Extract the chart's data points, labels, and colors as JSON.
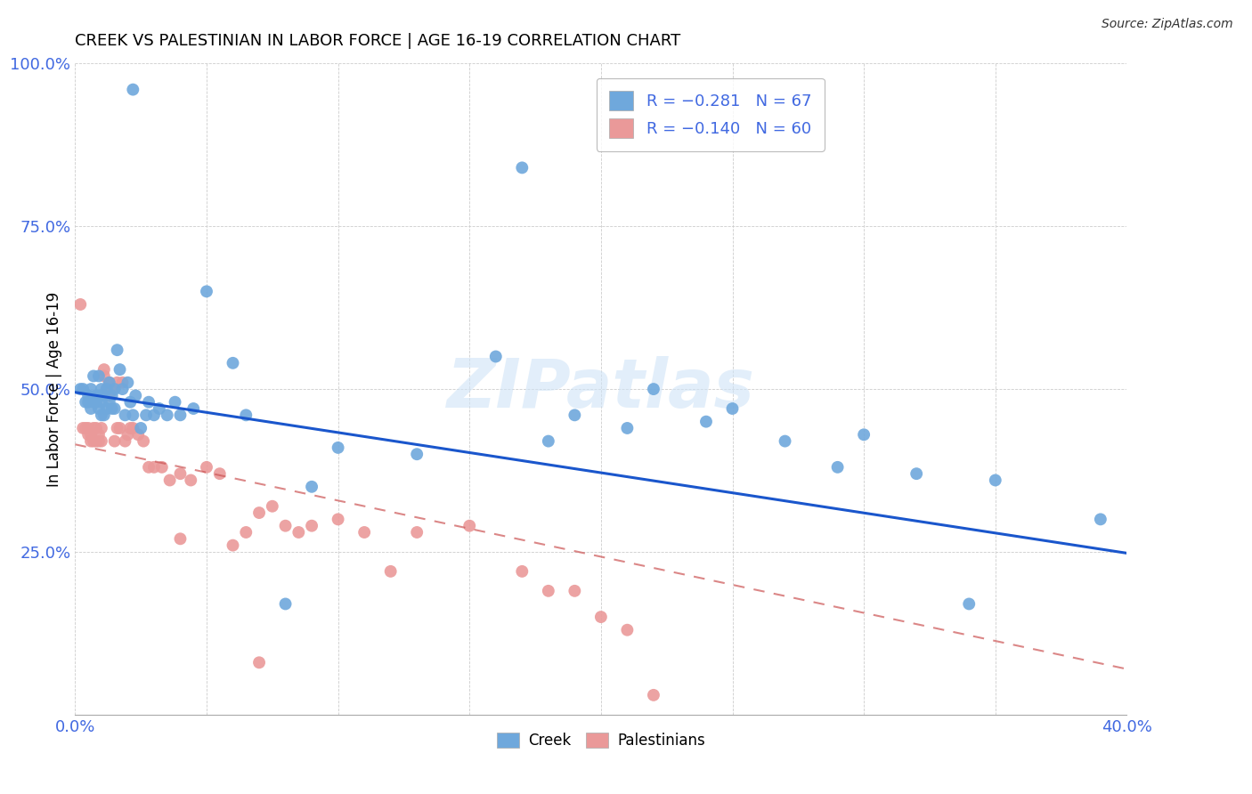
{
  "title": "CREEK VS PALESTINIAN IN LABOR FORCE | AGE 16-19 CORRELATION CHART",
  "source": "Source: ZipAtlas.com",
  "ylabel_label": "In Labor Force | Age 16-19",
  "x_min": 0.0,
  "x_max": 0.4,
  "y_min": 0.0,
  "y_max": 1.0,
  "x_ticks": [
    0.0,
    0.05,
    0.1,
    0.15,
    0.2,
    0.25,
    0.3,
    0.35,
    0.4
  ],
  "y_ticks": [
    0.0,
    0.25,
    0.5,
    0.75,
    1.0
  ],
  "creek_color": "#6fa8dc",
  "palestinian_color": "#ea9999",
  "creek_line_color": "#1a56cc",
  "palestinian_line_color": "#cc5555",
  "background_color": "#ffffff",
  "watermark": "ZIPatlas",
  "legend_creek_r": "R = −0.281",
  "legend_creek_n": "N = 67",
  "legend_pal_r": "R = −0.140",
  "legend_pal_n": "N = 60",
  "creek_x": [
    0.022,
    0.002,
    0.003,
    0.004,
    0.005,
    0.005,
    0.006,
    0.006,
    0.007,
    0.007,
    0.008,
    0.008,
    0.009,
    0.009,
    0.009,
    0.01,
    0.01,
    0.01,
    0.011,
    0.011,
    0.012,
    0.012,
    0.013,
    0.013,
    0.014,
    0.014,
    0.015,
    0.015,
    0.016,
    0.017,
    0.018,
    0.019,
    0.02,
    0.021,
    0.022,
    0.023,
    0.025,
    0.027,
    0.028,
    0.03,
    0.032,
    0.035,
    0.038,
    0.04,
    0.045,
    0.05,
    0.06,
    0.065,
    0.09,
    0.1,
    0.13,
    0.16,
    0.19,
    0.22,
    0.24,
    0.27,
    0.3,
    0.32,
    0.35,
    0.39,
    0.25,
    0.18,
    0.21,
    0.29,
    0.34,
    0.17,
    0.08
  ],
  "creek_y": [
    0.96,
    0.5,
    0.5,
    0.48,
    0.49,
    0.48,
    0.5,
    0.47,
    0.52,
    0.48,
    0.49,
    0.48,
    0.52,
    0.49,
    0.47,
    0.48,
    0.5,
    0.46,
    0.49,
    0.46,
    0.5,
    0.47,
    0.48,
    0.51,
    0.49,
    0.47,
    0.5,
    0.47,
    0.56,
    0.53,
    0.5,
    0.46,
    0.51,
    0.48,
    0.46,
    0.49,
    0.44,
    0.46,
    0.48,
    0.46,
    0.47,
    0.46,
    0.48,
    0.46,
    0.47,
    0.65,
    0.54,
    0.46,
    0.35,
    0.41,
    0.4,
    0.55,
    0.46,
    0.5,
    0.45,
    0.42,
    0.43,
    0.37,
    0.36,
    0.3,
    0.47,
    0.42,
    0.44,
    0.38,
    0.17,
    0.84,
    0.17
  ],
  "pal_x": [
    0.002,
    0.003,
    0.004,
    0.005,
    0.005,
    0.006,
    0.006,
    0.007,
    0.007,
    0.008,
    0.008,
    0.009,
    0.009,
    0.01,
    0.01,
    0.011,
    0.011,
    0.012,
    0.013,
    0.013,
    0.014,
    0.015,
    0.016,
    0.016,
    0.017,
    0.018,
    0.019,
    0.02,
    0.021,
    0.022,
    0.024,
    0.026,
    0.028,
    0.03,
    0.033,
    0.036,
    0.04,
    0.044,
    0.05,
    0.055,
    0.06,
    0.065,
    0.07,
    0.075,
    0.08,
    0.085,
    0.09,
    0.1,
    0.11,
    0.12,
    0.13,
    0.15,
    0.17,
    0.18,
    0.19,
    0.2,
    0.21,
    0.22,
    0.07,
    0.04
  ],
  "pal_y": [
    0.63,
    0.44,
    0.44,
    0.44,
    0.43,
    0.43,
    0.42,
    0.44,
    0.42,
    0.44,
    0.42,
    0.43,
    0.42,
    0.42,
    0.44,
    0.52,
    0.53,
    0.5,
    0.51,
    0.49,
    0.5,
    0.42,
    0.44,
    0.51,
    0.44,
    0.51,
    0.42,
    0.43,
    0.44,
    0.44,
    0.43,
    0.42,
    0.38,
    0.38,
    0.38,
    0.36,
    0.37,
    0.36,
    0.38,
    0.37,
    0.26,
    0.28,
    0.31,
    0.32,
    0.29,
    0.28,
    0.29,
    0.3,
    0.28,
    0.22,
    0.28,
    0.29,
    0.22,
    0.19,
    0.19,
    0.15,
    0.13,
    0.03,
    0.08,
    0.27
  ]
}
